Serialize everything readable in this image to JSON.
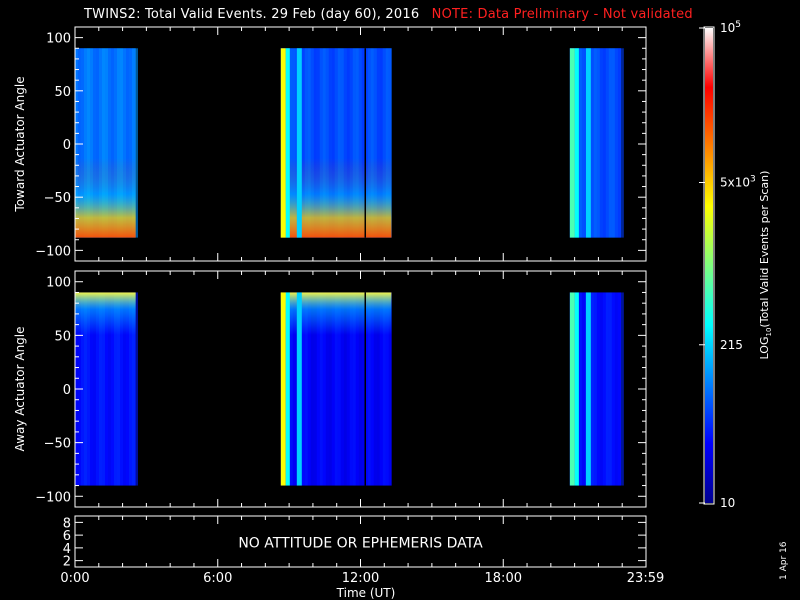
{
  "header": {
    "title": "TWINS2: Total Valid Events. 29 Feb (day  60), 2016",
    "note": "NOTE: Data Preliminary - Not validated",
    "note_color": "#ff2020"
  },
  "footer": {
    "date_stamp": "1 Apr 16"
  },
  "chart_data": [
    {
      "type": "heatmap",
      "panel": "toward",
      "ylabel": "Toward Actuator Angle",
      "yticks": [
        100,
        50,
        0,
        -50,
        -100
      ],
      "ytick_labels": [
        "100",
        "50",
        "0",
        "−50",
        "−100"
      ],
      "ylim": [
        -110,
        110
      ],
      "xlim": [
        0,
        24
      ],
      "angle_range": [
        -88,
        90
      ],
      "blocks": [
        {
          "start": 0.0,
          "end": 2.55,
          "base": 0.24,
          "enhance": "bottom"
        },
        {
          "start": 8.65,
          "end": 13.3,
          "base": 0.2,
          "enhance": "bottom"
        },
        {
          "start": 20.8,
          "end": 22.95,
          "base": 0.2,
          "enhance": "none"
        }
      ]
    },
    {
      "type": "heatmap",
      "panel": "away",
      "ylabel": "Away Actuator Angle",
      "yticks": [
        100,
        50,
        0,
        -50,
        -100
      ],
      "ytick_labels": [
        "100",
        "50",
        "0",
        "−50",
        "−100"
      ],
      "ylim": [
        -110,
        110
      ],
      "xlim": [
        0,
        24
      ],
      "angle_range": [
        -90,
        90
      ],
      "blocks": [
        {
          "start": 0.0,
          "end": 2.55,
          "base": 0.14,
          "enhance": "top"
        },
        {
          "start": 8.65,
          "end": 13.3,
          "base": 0.12,
          "enhance": "top"
        },
        {
          "start": 20.8,
          "end": 22.95,
          "base": 0.14,
          "enhance": "none"
        }
      ]
    },
    {
      "type": "table",
      "panel": "attitude",
      "yticks": [
        8,
        6,
        4,
        2
      ],
      "ylim": [
        1,
        9
      ],
      "message": "NO ATTITUDE OR EPHEMERIS DATA"
    }
  ],
  "x_axis": {
    "label": "Time (UT)",
    "tick_labels": [
      "0:00",
      "6:00",
      "12:00",
      "18:00",
      "23:59"
    ],
    "tick_hours": [
      0,
      6,
      12,
      18,
      23.98
    ]
  },
  "colorbar": {
    "label": "LOG10(Total Valid Events per Scan)",
    "label_prefix": "LOG",
    "label_sub": "10",
    "label_rest": "(Total Valid Events per Scan)",
    "scale": "log",
    "range": [
      10,
      100000
    ],
    "ticks": [
      {
        "value": 100000,
        "base": "10",
        "exp": "5"
      },
      {
        "value": 5000,
        "base": "5x10",
        "exp": "3"
      },
      {
        "value": 215,
        "base": "215",
        "exp": ""
      },
      {
        "value": 10,
        "base": "10",
        "exp": ""
      }
    ]
  }
}
